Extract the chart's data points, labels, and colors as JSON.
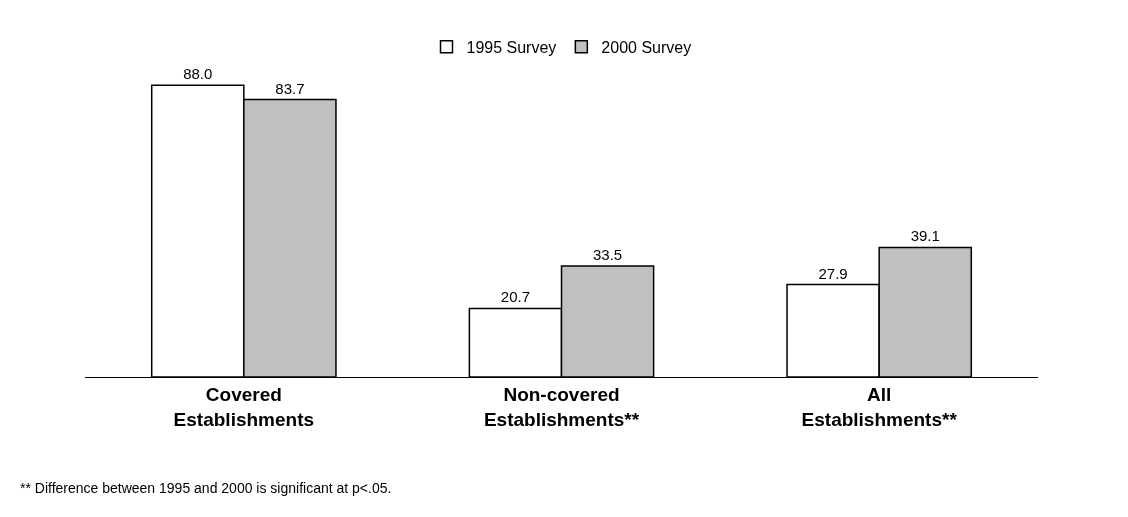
{
  "chart_data": {
    "type": "bar",
    "categories": [
      "Covered\nEstablishments",
      "Non-covered\nEstablishments**",
      "All\nEstablishments**"
    ],
    "series": [
      {
        "name": "1995 Survey",
        "color": "#ffffff",
        "values": [
          88.0,
          20.7,
          27.9
        ],
        "value_labels": [
          "88.0",
          "20.7",
          "27.9"
        ]
      },
      {
        "name": "2000 Survey",
        "color": "#c0c0c0",
        "values": [
          83.7,
          33.5,
          39.1
        ],
        "value_labels": [
          "83.7",
          "33.5",
          "39.1"
        ]
      }
    ],
    "legend": "top",
    "annotations": [
      "** Difference between 1995 and 2000 is significant at p<.05."
    ]
  }
}
